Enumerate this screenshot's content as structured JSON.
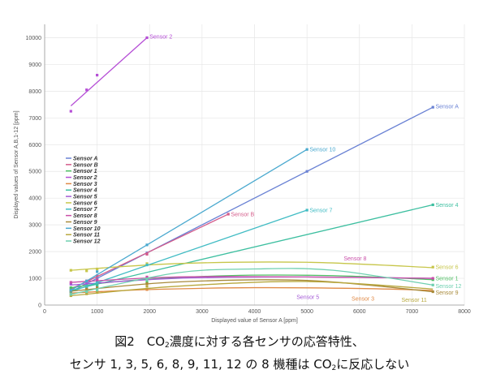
{
  "caption": {
    "line1_a": "図2　CO",
    "line1_sub": "2",
    "line1_b": "濃度に対する各センサの応答特性、",
    "line2_a": "センサ 1, 3, 5, 6, 8, 9, 11, 12 の 8 機種は CO",
    "line2_sub": "2",
    "line2_b": "に反応しない"
  },
  "chart_data": {
    "type": "line",
    "xlabel": "Displayed value of Sensor A [ppm]",
    "ylabel": "Displayed values of Sensor A,B,1-12 [ppm]",
    "xlim": [
      0,
      8000
    ],
    "ylim": [
      0,
      10500
    ],
    "x_ticks": [
      0,
      1000,
      2000,
      3000,
      4000,
      5000,
      6000,
      7000,
      8000
    ],
    "y_ticks": [
      0,
      1000,
      2000,
      3000,
      4000,
      5000,
      6000,
      7000,
      8000,
      9000,
      10000
    ],
    "grid": true,
    "legend_position": "left-middle",
    "series": [
      {
        "name": "Sensor A",
        "color": "#6a82d4",
        "line": [
          [
            500,
            500
          ],
          [
            7400,
            7400
          ]
        ],
        "points": [
          [
            500,
            500
          ],
          [
            800,
            800
          ],
          [
            1000,
            1000
          ],
          [
            1950,
            1950
          ],
          [
            5000,
            5000
          ],
          [
            7400,
            7400
          ]
        ],
        "label": "Sensor A",
        "label_at": [
          7450,
          7430
        ]
      },
      {
        "name": "Sensor B",
        "color": "#d45b8a",
        "line": [
          [
            500,
            600
          ],
          [
            3500,
            3400
          ]
        ],
        "points": [
          [
            500,
            620
          ],
          [
            800,
            900
          ],
          [
            1000,
            1100
          ],
          [
            1950,
            1900
          ],
          [
            3500,
            3400
          ]
        ],
        "label": "Sensor B",
        "label_at": [
          3550,
          3400
        ]
      },
      {
        "name": "Sensor 1",
        "color": "#4fbf64",
        "line": [
          [
            500,
            650
          ],
          [
            1500,
            900
          ],
          [
            3500,
            1100
          ],
          [
            5500,
            1100
          ],
          [
            7400,
            950
          ]
        ],
        "points": [
          [
            500,
            650
          ],
          [
            800,
            700
          ],
          [
            1000,
            750
          ],
          [
            1950,
            850
          ],
          [
            7400,
            950
          ]
        ],
        "label": "Sensor 1",
        "label_at": [
          7450,
          1000
        ]
      },
      {
        "name": "Sensor 2",
        "color": "#b54ed6",
        "line": [
          [
            500,
            7450
          ],
          [
            1950,
            10000
          ]
        ],
        "points": [
          [
            500,
            7250
          ],
          [
            800,
            8050
          ],
          [
            1000,
            8600
          ],
          [
            1950,
            10000
          ]
        ],
        "label": "Sensor 2",
        "label_at": [
          2000,
          10050
        ]
      },
      {
        "name": "Sensor 3",
        "color": "#e08a46",
        "line": [
          [
            500,
            450
          ],
          [
            2000,
            580
          ],
          [
            4000,
            650
          ],
          [
            6000,
            620
          ],
          [
            7400,
            550
          ]
        ],
        "points": [
          [
            500,
            430
          ],
          [
            800,
            480
          ],
          [
            1000,
            520
          ],
          [
            1950,
            580
          ]
        ],
        "label": "Sensor 3",
        "label_at": [
          5850,
          250
        ]
      },
      {
        "name": "Sensor 4",
        "color": "#3dbfa0",
        "line": [
          [
            500,
            550
          ],
          [
            7400,
            3750
          ]
        ],
        "points": [
          [
            500,
            550
          ],
          [
            800,
            650
          ],
          [
            1000,
            700
          ],
          [
            1950,
            1000
          ],
          [
            7400,
            3750
          ]
        ],
        "label": "Sensor 4",
        "label_at": [
          7450,
          3750
        ]
      },
      {
        "name": "Sensor 5",
        "color": "#a45ad6",
        "line": [
          [
            500,
            750
          ],
          [
            2500,
            1000
          ],
          [
            5000,
            1050
          ],
          [
            7400,
            1000
          ]
        ],
        "points": [
          [
            500,
            780
          ],
          [
            800,
            850
          ],
          [
            1000,
            900
          ],
          [
            1950,
            1000
          ]
        ],
        "label": "Sensor 5",
        "label_at": [
          4800,
          300
        ]
      },
      {
        "name": "Sensor 6",
        "color": "#c7c64a",
        "line": [
          [
            500,
            1300
          ],
          [
            2500,
            1550
          ],
          [
            5000,
            1600
          ],
          [
            7400,
            1400
          ]
        ],
        "points": [
          [
            500,
            1300
          ],
          [
            800,
            1280
          ],
          [
            1000,
            1350
          ],
          [
            1950,
            1550
          ],
          [
            7400,
            1420
          ]
        ],
        "label": "Sensor 6",
        "label_at": [
          7450,
          1420
        ]
      },
      {
        "name": "Sensor 7",
        "color": "#41bcc4",
        "line": [
          [
            500,
            500
          ],
          [
            5000,
            3550
          ]
        ],
        "points": [
          [
            500,
            500
          ],
          [
            800,
            700
          ],
          [
            1000,
            850
          ],
          [
            1950,
            1500
          ],
          [
            5000,
            3550
          ]
        ],
        "label": "Sensor 7",
        "label_at": [
          5050,
          3550
        ]
      },
      {
        "name": "Sensor 8",
        "color": "#c94fa9",
        "line": [
          [
            500,
            850
          ],
          [
            2500,
            1050
          ],
          [
            5000,
            1050
          ],
          [
            7400,
            1000
          ]
        ],
        "points": [
          [
            500,
            850
          ],
          [
            800,
            900
          ],
          [
            1000,
            950
          ],
          [
            1950,
            1050
          ],
          [
            7400,
            1000
          ]
        ],
        "label": "Sensor 8",
        "label_at": [
          5700,
          1750
        ]
      },
      {
        "name": "Sensor 9",
        "color": "#a88a3a",
        "line": [
          [
            500,
            520
          ],
          [
            2500,
            860
          ],
          [
            5000,
            920
          ],
          [
            7400,
            500
          ]
        ],
        "points": [
          [
            500,
            520
          ],
          [
            800,
            600
          ],
          [
            1000,
            650
          ],
          [
            1950,
            800
          ],
          [
            7400,
            500
          ]
        ],
        "label": "Sensor 9",
        "label_at": [
          7450,
          470
        ]
      },
      {
        "name": "Sensor 10",
        "color": "#4aa9cf",
        "line": [
          [
            500,
            550
          ],
          [
            5000,
            5820
          ]
        ],
        "points": [
          [
            500,
            550
          ],
          [
            800,
            900
          ],
          [
            1000,
            1250
          ],
          [
            1950,
            2250
          ],
          [
            5000,
            5820
          ]
        ],
        "label": "Sensor 10",
        "label_at": [
          5050,
          5820
        ]
      },
      {
        "name": "Sensor 11",
        "color": "#b8a83e",
        "line": [
          [
            500,
            350
          ],
          [
            2500,
            700
          ],
          [
            5000,
            880
          ],
          [
            7400,
            600
          ]
        ],
        "points": [
          [
            500,
            350
          ],
          [
            800,
            420
          ],
          [
            1000,
            470
          ],
          [
            1950,
            700
          ]
        ],
        "label": "Sensor 11",
        "label_at": [
          6800,
          200
        ]
      },
      {
        "name": "Sensor 12",
        "color": "#6fd0b0",
        "line": [
          [
            500,
            400
          ],
          [
            2500,
            1200
          ],
          [
            4000,
            1350
          ],
          [
            5500,
            1300
          ],
          [
            7400,
            750
          ]
        ],
        "points": [
          [
            500,
            400
          ],
          [
            800,
            500
          ],
          [
            1000,
            560
          ],
          [
            1950,
            950
          ],
          [
            7400,
            750
          ]
        ],
        "label": "Sensor 12",
        "label_at": [
          7450,
          720
        ]
      }
    ]
  }
}
